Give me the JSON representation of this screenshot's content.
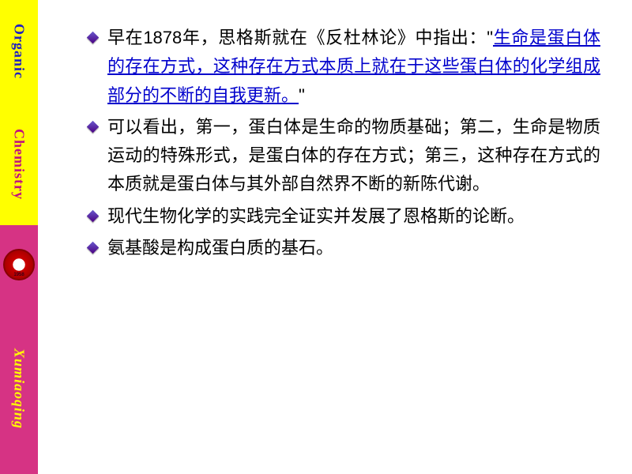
{
  "sidebar": {
    "text1": "Organic",
    "text2": "Chemistry",
    "text3": "Xumiaoqing",
    "bg_yellow": "#ffff00",
    "bg_pink": "#d63384",
    "color_blue": "#2020c0",
    "color_magenta": "#c01080",
    "color_yellowtext": "#ffff00"
  },
  "content": {
    "bullets": [
      {
        "prefix": "早在1878年，思格斯就在《反杜林论》中指出：\"",
        "link": "生命是蛋白体的存在方式，这种存在方式本质上就在于这些蛋白体的化学组成部分的不断的自我更新。",
        "suffix": "\""
      },
      {
        "text": "可以看出，第一，蛋白体是生命的物质基础；第二，生命是物质运动的特殊形式，是蛋白体的存在方式；第三，这种存在方式的本质就是蛋白体与其外部自然界不断的新陈代谢。"
      },
      {
        "text": "现代生物化学的实践完全证实并发展了恩格斯的论断。"
      },
      {
        "text": "氨基酸是构成蛋白质的基石。"
      }
    ],
    "link_color": "#0000cc",
    "text_color": "#000000",
    "font_size_pt": 16,
    "background": "#ffffff"
  }
}
